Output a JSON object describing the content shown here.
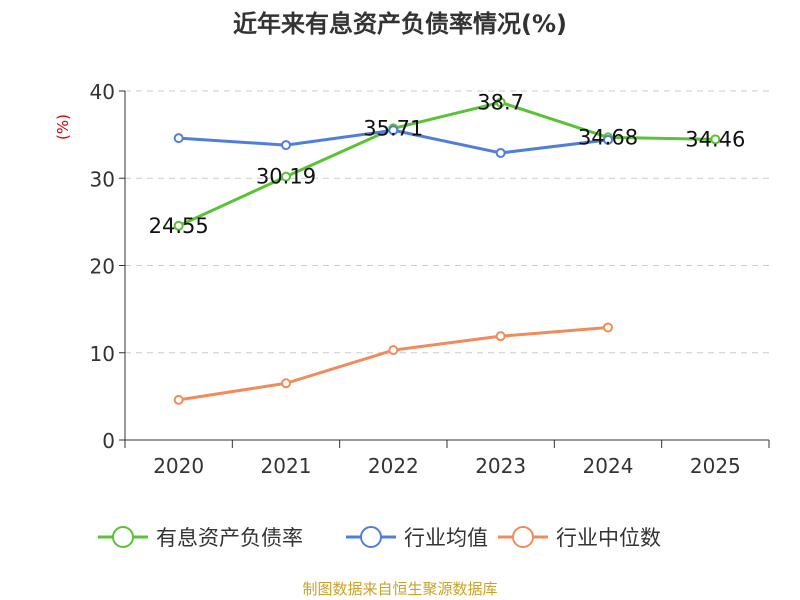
{
  "chart_data": {
    "type": "line",
    "title": "近年来有息资产负债率情况(%)",
    "ylabel": "(%)",
    "categories": [
      "2020",
      "2021",
      "2022",
      "2023",
      "2024",
      "2025"
    ],
    "ylim": [
      0,
      40
    ],
    "yticks": [
      0,
      10,
      20,
      30,
      40
    ],
    "grid": true,
    "legend_position": "bottom",
    "series": [
      {
        "name": "有息资产负债率",
        "color": "#5bc236",
        "values": [
          24.55,
          30.19,
          35.71,
          38.7,
          34.68,
          34.46
        ],
        "labels": [
          "24.55",
          "30.19",
          "35.71",
          "38.7",
          "34.68",
          "34.46"
        ]
      },
      {
        "name": "行业均值",
        "color": "#4f7fd9",
        "values": [
          34.6,
          33.8,
          35.5,
          32.9,
          34.4,
          null
        ]
      },
      {
        "name": "行业中位数",
        "color": "#f08b5b",
        "values": [
          4.6,
          6.5,
          10.3,
          11.9,
          12.9,
          null
        ]
      }
    ]
  },
  "source": "制图数据来自恒生聚源数据库"
}
